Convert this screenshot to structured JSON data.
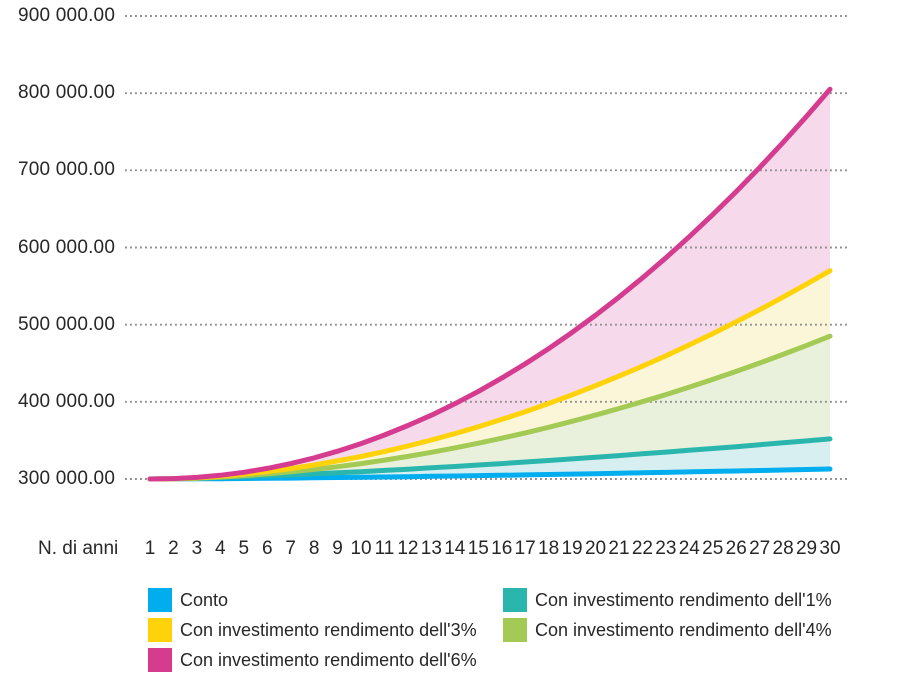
{
  "chart_data": {
    "type": "line",
    "title": "",
    "xlabel": "N. di anni",
    "ylabel": "",
    "x": [
      1,
      2,
      3,
      4,
      5,
      6,
      7,
      8,
      9,
      10,
      11,
      12,
      13,
      14,
      15,
      16,
      17,
      18,
      19,
      20,
      21,
      22,
      23,
      24,
      25,
      26,
      27,
      28,
      29,
      30
    ],
    "ylim": [
      300000,
      900000
    ],
    "grid": "horizontal-dotted",
    "grid_color": "#8F8F8F",
    "legend_position": "bottom",
    "text_color": "#272727",
    "y_ticks": [
      {
        "value": 900000,
        "label": "900 000.00"
      },
      {
        "value": 800000,
        "label": "800 000.00"
      },
      {
        "value": 700000,
        "label": "700 000.00"
      },
      {
        "value": 600000,
        "label": "600 000.00"
      },
      {
        "value": 500000,
        "label": "500 000.00"
      },
      {
        "value": 400000,
        "label": "400 000.00"
      },
      {
        "value": 300000,
        "label": "300 000.00"
      }
    ],
    "series": [
      {
        "name": "rendimento-6",
        "label": "Con investimento rendimento dell'6%",
        "color": "#D53C8F",
        "band_fill_to_next": "#F6DAEC",
        "values": [
          300000,
          300500,
          302100,
          304800,
          308700,
          313700,
          320000,
          327400,
          336000,
          345900,
          357000,
          369300,
          382700,
          397500,
          413500,
          430800,
          449200,
          468900,
          490000,
          512200,
          535700,
          560600,
          586600,
          614000,
          642600,
          672500,
          703700,
          736200,
          770000,
          805000
        ]
      },
      {
        "name": "rendimento-3",
        "label": "Con investimento rendimento dell'3%",
        "color": "#FFD20A",
        "band_fill_to_next": "#FCF6D8",
        "values": [
          300000,
          300400,
          301700,
          303600,
          306300,
          309600,
          313500,
          318100,
          323400,
          329200,
          335700,
          342800,
          350500,
          358800,
          367700,
          377200,
          387200,
          397900,
          409100,
          420900,
          433300,
          446200,
          459700,
          473800,
          488400,
          503700,
          519400,
          535700,
          552600,
          570000
        ]
      },
      {
        "name": "rendimento-4",
        "label": "Con investimento rendimento dell'4%",
        "color": "#A3CA55",
        "band_fill_to_next": "#E9F1DC",
        "values": [
          300000,
          300300,
          301100,
          302500,
          304300,
          306600,
          309300,
          312400,
          316000,
          320000,
          324500,
          329300,
          334600,
          340300,
          346400,
          352900,
          359800,
          367000,
          374800,
          382800,
          391300,
          400200,
          409400,
          419100,
          429100,
          439500,
          450300,
          461500,
          473100,
          485000
        ]
      },
      {
        "name": "rendimento-1",
        "label": "Con investimento rendimento dell'1%",
        "color": "#2BB6AD",
        "band_fill_to_next": "#D8EFF1",
        "values": [
          300000,
          300400,
          301100,
          301900,
          302900,
          304100,
          305300,
          306600,
          308000,
          309500,
          311100,
          312700,
          314500,
          316200,
          318100,
          320000,
          322000,
          324000,
          326000,
          328200,
          330300,
          332600,
          334800,
          337200,
          339500,
          341900,
          344400,
          346900,
          349400,
          352000
        ]
      },
      {
        "name": "conto",
        "label": "Conto",
        "color": "#00AEEF",
        "band_fill_to_next": null,
        "values": [
          300000,
          300100,
          300200,
          300400,
          300700,
          300900,
          301200,
          301500,
          301900,
          302200,
          302600,
          303000,
          303500,
          303900,
          304400,
          304800,
          305300,
          305800,
          306400,
          306900,
          307400,
          308000,
          308600,
          309200,
          309800,
          310400,
          311000,
          311700,
          312300,
          313000
        ]
      }
    ],
    "legend": [
      {
        "name": "conto",
        "label": "Conto",
        "color": "#00AEEF"
      },
      {
        "name": "rendimento-1",
        "label": "Con investimento rendimento dell'1%",
        "color": "#2BB6AD"
      },
      {
        "name": "rendimento-3",
        "label": "Con investimento rendimento dell'3%",
        "color": "#FFD20A"
      },
      {
        "name": "rendimento-4",
        "label": "Con investimento rendimento dell'4%",
        "color": "#A3CA55"
      },
      {
        "name": "rendimento-6",
        "label": "Con investimento rendimento dell'6%",
        "color": "#D53C8F"
      }
    ]
  }
}
